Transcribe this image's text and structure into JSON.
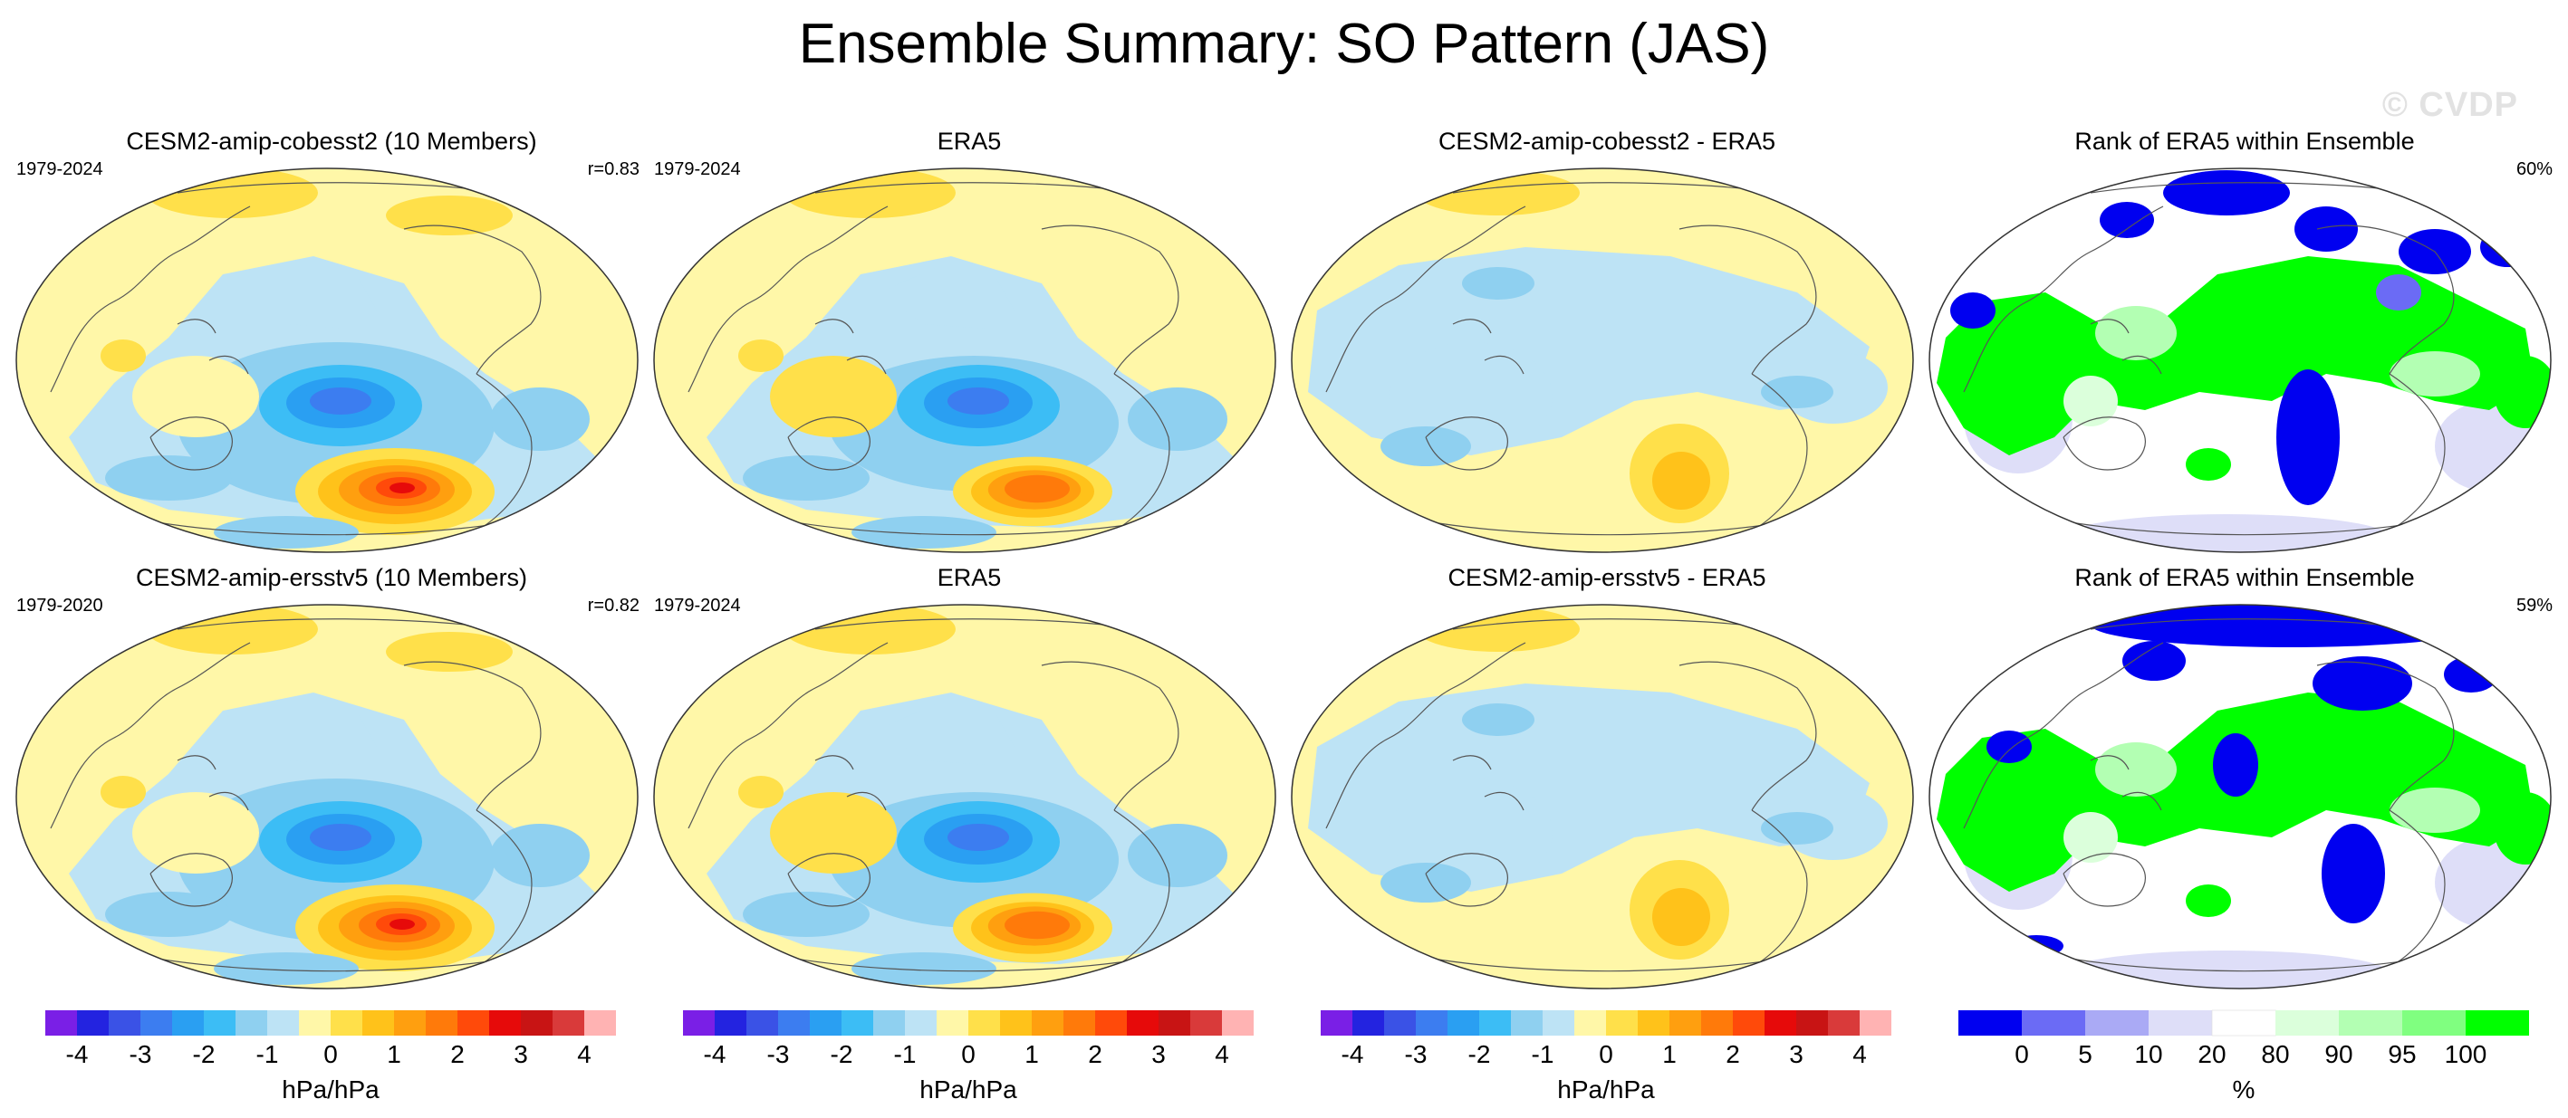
{
  "figure": {
    "title": "Ensemble Summary: SO Pattern (JAS)",
    "watermark": "© CVDP"
  },
  "panels": [
    {
      "id": "r1c1",
      "type": "pattern",
      "title": "CESM2-amip-cobesst2 (10 Members)",
      "left_label": "1979-2024",
      "right_label": "r=0.83",
      "variant": "model"
    },
    {
      "id": "r1c2",
      "type": "pattern",
      "title": "ERA5",
      "left_label": "1979-2024",
      "right_label": "",
      "variant": "obs"
    },
    {
      "id": "r1c3",
      "type": "difference",
      "title": "CESM2-amip-cobesst2 - ERA5",
      "left_label": "",
      "right_label": "",
      "variant": "diff"
    },
    {
      "id": "r1c4",
      "type": "rank",
      "title": "Rank of ERA5 within Ensemble",
      "left_label": "",
      "right_label": "60%",
      "variant": "rank1"
    },
    {
      "id": "r2c1",
      "type": "pattern",
      "title": "CESM2-amip-ersstv5 (10 Members)",
      "left_label": "1979-2020",
      "right_label": "r=0.82",
      "variant": "model"
    },
    {
      "id": "r2c2",
      "type": "pattern",
      "title": "ERA5",
      "left_label": "1979-2024",
      "right_label": "",
      "variant": "obs"
    },
    {
      "id": "r2c3",
      "type": "difference",
      "title": "CESM2-amip-ersstv5 - ERA5",
      "left_label": "",
      "right_label": "",
      "variant": "diff"
    },
    {
      "id": "r2c4",
      "type": "rank",
      "title": "Rank of ERA5 within Ensemble",
      "left_label": "",
      "right_label": "59%",
      "variant": "rank2"
    }
  ],
  "colorbars": {
    "pattern": {
      "colors": [
        "#7a1fe6",
        "#2323e0",
        "#3a52e6",
        "#3c7df0",
        "#2a9ff2",
        "#3cbdf5",
        "#8fd0f0",
        "#bde3f5",
        "#fff7a8",
        "#ffe04a",
        "#ffc21a",
        "#ff9f0f",
        "#ff7a0a",
        "#ff4a0a",
        "#e60a0a",
        "#c81414",
        "#d93a3a",
        "#ffb3b3"
      ],
      "tick_labels": [
        "-4",
        "-3",
        "-2",
        "-1",
        "0",
        "1",
        "2",
        "3",
        "4"
      ],
      "unit": "hPa/hPa"
    },
    "rank": {
      "colors": [
        "#0000f0",
        "#6b6bf5",
        "#aaaaf5",
        "#dedef8",
        "#ffffff",
        "#dbffdb",
        "#b3ffb3",
        "#80ff80",
        "#00ff00"
      ],
      "tick_labels": [
        "0",
        "5",
        "10",
        "20",
        "80",
        "90",
        "95",
        "100"
      ],
      "unit": "%"
    }
  }
}
